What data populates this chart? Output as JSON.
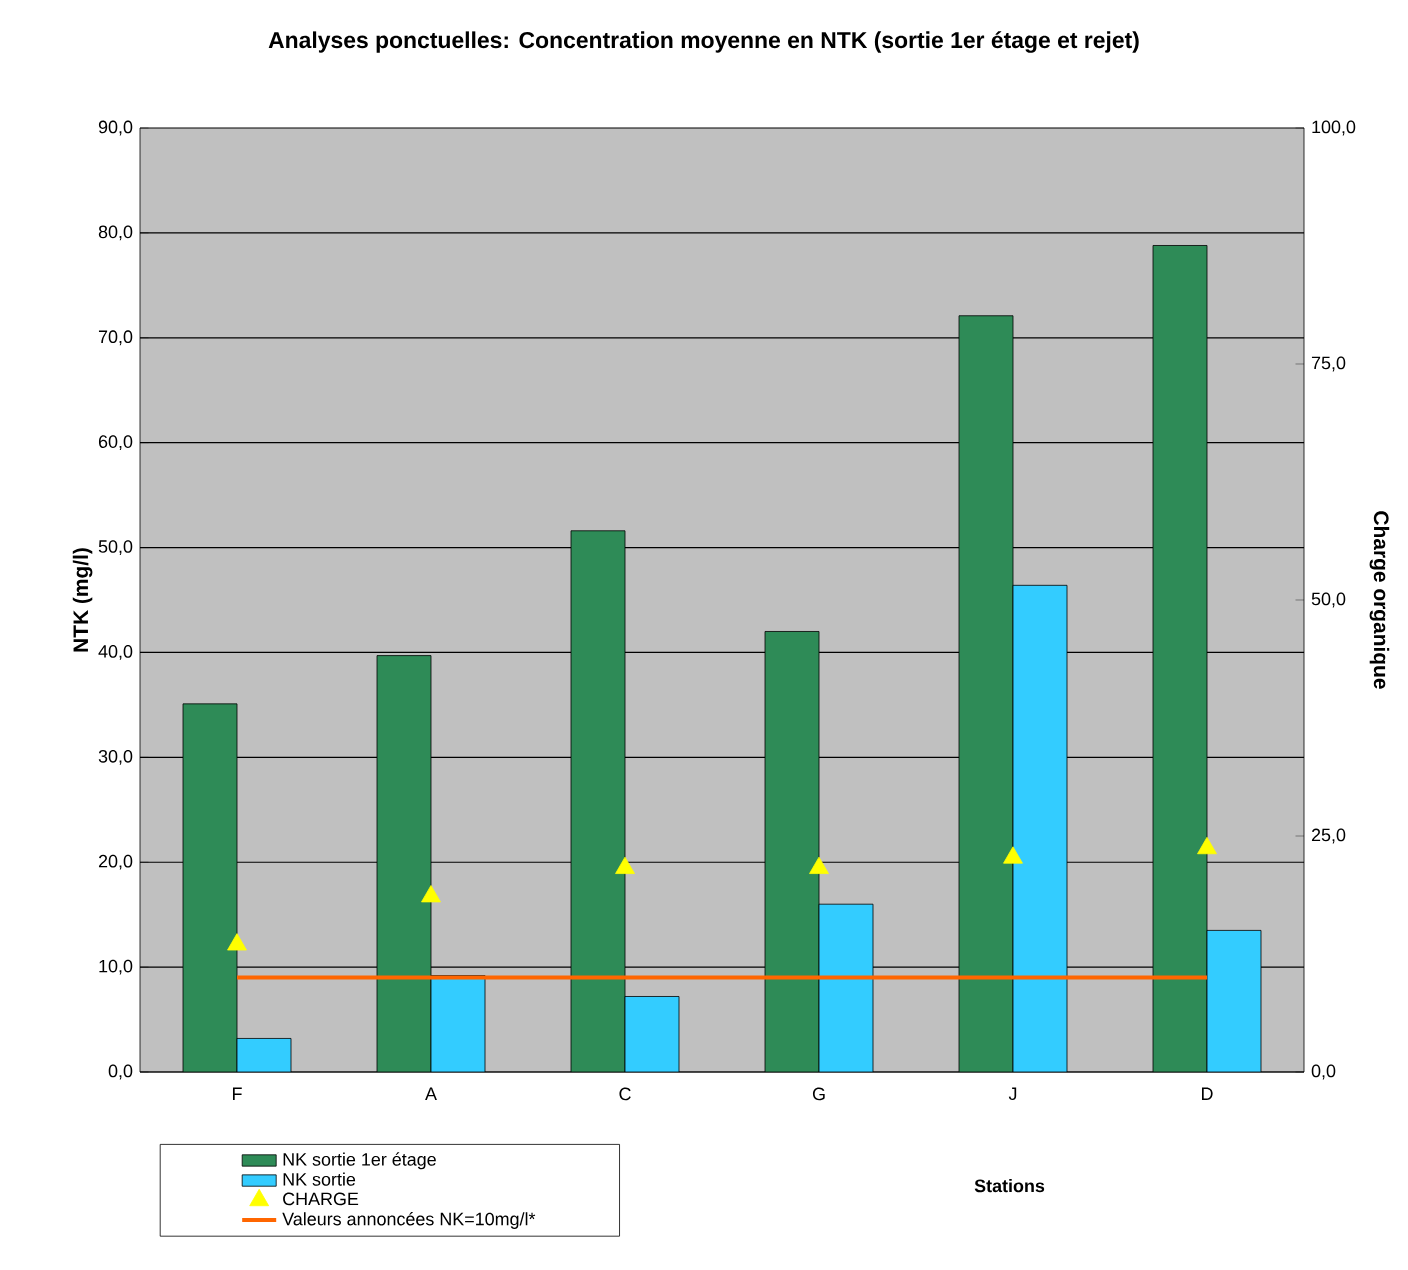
{
  "chart_data": {
    "type": "bar",
    "title": "Analyses ponctuelles: Concentration moyenne en NTK (sortie 1er étage et rejet)",
    "xlabel": "Stations",
    "ylabel": "NTK (mg/l)",
    "y2label": "Charge organique",
    "categories": [
      "F",
      "A",
      "C",
      "G",
      "J",
      "D"
    ],
    "series": [
      {
        "name": "NK sortie 1er étage",
        "type": "bar",
        "color": "#2e8b57",
        "values": [
          35.1,
          39.7,
          51.6,
          42.0,
          72.1,
          78.8
        ]
      },
      {
        "name": "NK sortie",
        "type": "bar",
        "color": "#33ccff",
        "values": [
          3.2,
          9.2,
          7.2,
          16.0,
          46.4,
          13.5
        ]
      },
      {
        "name": "CHARGE",
        "type": "scatter",
        "axis": "y2",
        "marker": "triangle",
        "color": "#ffff00",
        "values": [
          13.5,
          18.6,
          21.6,
          21.6,
          22.7,
          23.7
        ]
      },
      {
        "name": "Valeurs annoncées NK=10mg/l*",
        "type": "line",
        "axis": "y2",
        "marker": "none",
        "line_style": "solid",
        "color": "#ff6600",
        "values": [
          10,
          10,
          10,
          10,
          10,
          10
        ]
      }
    ],
    "ylim": [
      0,
      90
    ],
    "yticks": [
      {
        "value": 0,
        "label": "0,0"
      },
      {
        "value": 10,
        "label": "10,0"
      },
      {
        "value": 20,
        "label": "20,0"
      },
      {
        "value": 30,
        "label": "30,0"
      },
      {
        "value": 40,
        "label": "40,0"
      },
      {
        "value": 50,
        "label": "50,0"
      },
      {
        "value": 60,
        "label": "60,0"
      },
      {
        "value": 70,
        "label": "70,0"
      },
      {
        "value": 80,
        "label": "80,0"
      },
      {
        "value": 90,
        "label": "90,0"
      }
    ],
    "y2lim": [
      0,
      100
    ],
    "y2ticks": [
      {
        "value": 0,
        "label": "0,0"
      },
      {
        "value": 25,
        "label": "25,0"
      },
      {
        "value": 50,
        "label": "50,0"
      },
      {
        "value": 75,
        "label": "75,0"
      },
      {
        "value": 100,
        "label": "100,0"
      }
    ],
    "grid": "y",
    "legend": "bottom left"
  }
}
